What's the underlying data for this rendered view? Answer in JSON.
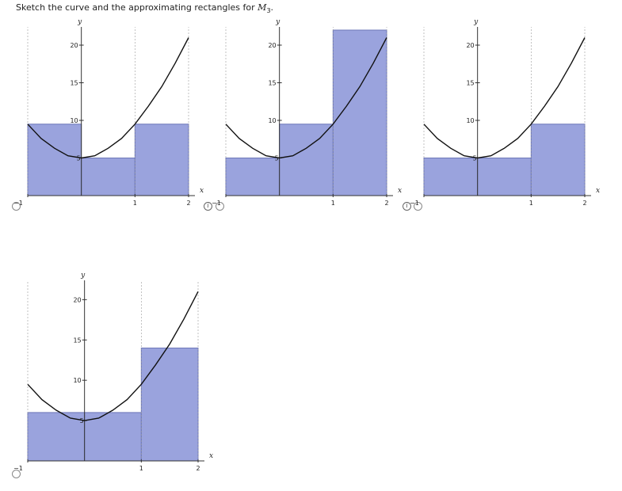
{
  "question": {
    "prefix": "Sketch the curve and the approximating rectangles for ",
    "var": "M",
    "sub": "3",
    "suffix": "."
  },
  "colors": {
    "rect_fill": "#9aa3dd",
    "rect_stroke": "#6d77b8",
    "curve": "#111111",
    "axis": "#333333",
    "grid": "#999999"
  },
  "chart_data": [
    {
      "type": "area",
      "xlabel": "x",
      "ylabel": "y",
      "xlim": [
        -1,
        2
      ],
      "ylim": [
        0,
        22
      ],
      "xticks": [
        -1,
        1,
        2
      ],
      "yticks": [
        5,
        10,
        15,
        20
      ],
      "curve": {
        "x": [
          -1,
          -0.75,
          -0.5,
          -0.25,
          0,
          0.25,
          0.5,
          0.75,
          1,
          1.25,
          1.5,
          1.75,
          2,
          2
        ],
        "y": [
          9.5,
          7.6,
          6.3,
          5.3,
          5,
          5.3,
          6.3,
          7.6,
          9.5,
          11.9,
          14.5,
          17.6,
          21,
          21
        ]
      },
      "rectangles": [
        {
          "x0": -1,
          "x1": 0,
          "height": 9.5
        },
        {
          "x0": 0,
          "x1": 1,
          "height": 5
        },
        {
          "x0": 1,
          "x1": 2,
          "height": 9.5
        }
      ]
    },
    {
      "type": "area",
      "xlabel": "x",
      "ylabel": "y",
      "xlim": [
        -1,
        2
      ],
      "ylim": [
        0,
        22
      ],
      "xticks": [
        -1,
        1,
        2
      ],
      "yticks": [
        5,
        10,
        15,
        20
      ],
      "curve": {
        "x": [
          -1,
          -0.75,
          -0.5,
          -0.25,
          0,
          0.25,
          0.5,
          0.75,
          1,
          1.25,
          1.5,
          1.75,
          2,
          2
        ],
        "y": [
          9.5,
          7.6,
          6.3,
          5.3,
          5,
          5.3,
          6.3,
          7.6,
          9.5,
          11.9,
          14.5,
          17.6,
          21,
          21
        ]
      },
      "rectangles": [
        {
          "x0": -1,
          "x1": 0,
          "height": 5
        },
        {
          "x0": 0,
          "x1": 1,
          "height": 9.5
        },
        {
          "x0": 1,
          "x1": 2,
          "height": 22
        }
      ]
    },
    {
      "type": "area",
      "xlabel": "x",
      "ylabel": "y",
      "xlim": [
        -1,
        2
      ],
      "ylim": [
        0,
        22
      ],
      "xticks": [
        -1,
        1,
        2
      ],
      "yticks": [
        5,
        10,
        15,
        20
      ],
      "curve": {
        "x": [
          -1,
          -0.75,
          -0.5,
          -0.25,
          0,
          0.25,
          0.5,
          0.75,
          1,
          1.25,
          1.5,
          1.75,
          2,
          2
        ],
        "y": [
          9.5,
          7.6,
          6.3,
          5.3,
          5,
          5.3,
          6.3,
          7.6,
          9.5,
          11.9,
          14.5,
          17.6,
          21,
          21
        ]
      },
      "rectangles": [
        {
          "x0": -1,
          "x1": 0,
          "height": 5
        },
        {
          "x0": 0,
          "x1": 1,
          "height": 5
        },
        {
          "x0": 1,
          "x1": 2,
          "height": 9.5
        }
      ]
    },
    {
      "type": "area",
      "xlabel": "x",
      "ylabel": "y",
      "xlim": [
        -1,
        2
      ],
      "ylim": [
        0,
        22
      ],
      "xticks": [
        -1,
        1,
        2
      ],
      "yticks": [
        5,
        10,
        15,
        20
      ],
      "curve": {
        "x": [
          -1,
          -0.75,
          -0.5,
          -0.25,
          0,
          0.25,
          0.5,
          0.75,
          1,
          1.25,
          1.5,
          1.75,
          2,
          2
        ],
        "y": [
          9.5,
          7.6,
          6.3,
          5.3,
          5,
          5.3,
          6.3,
          7.6,
          9.5,
          11.9,
          14.5,
          17.6,
          21,
          21
        ]
      },
      "rectangles": [
        {
          "x0": -1,
          "x1": 0,
          "height": 6
        },
        {
          "x0": 0,
          "x1": 1,
          "height": 6
        },
        {
          "x0": 1,
          "x1": 2,
          "height": 14
        }
      ]
    }
  ]
}
